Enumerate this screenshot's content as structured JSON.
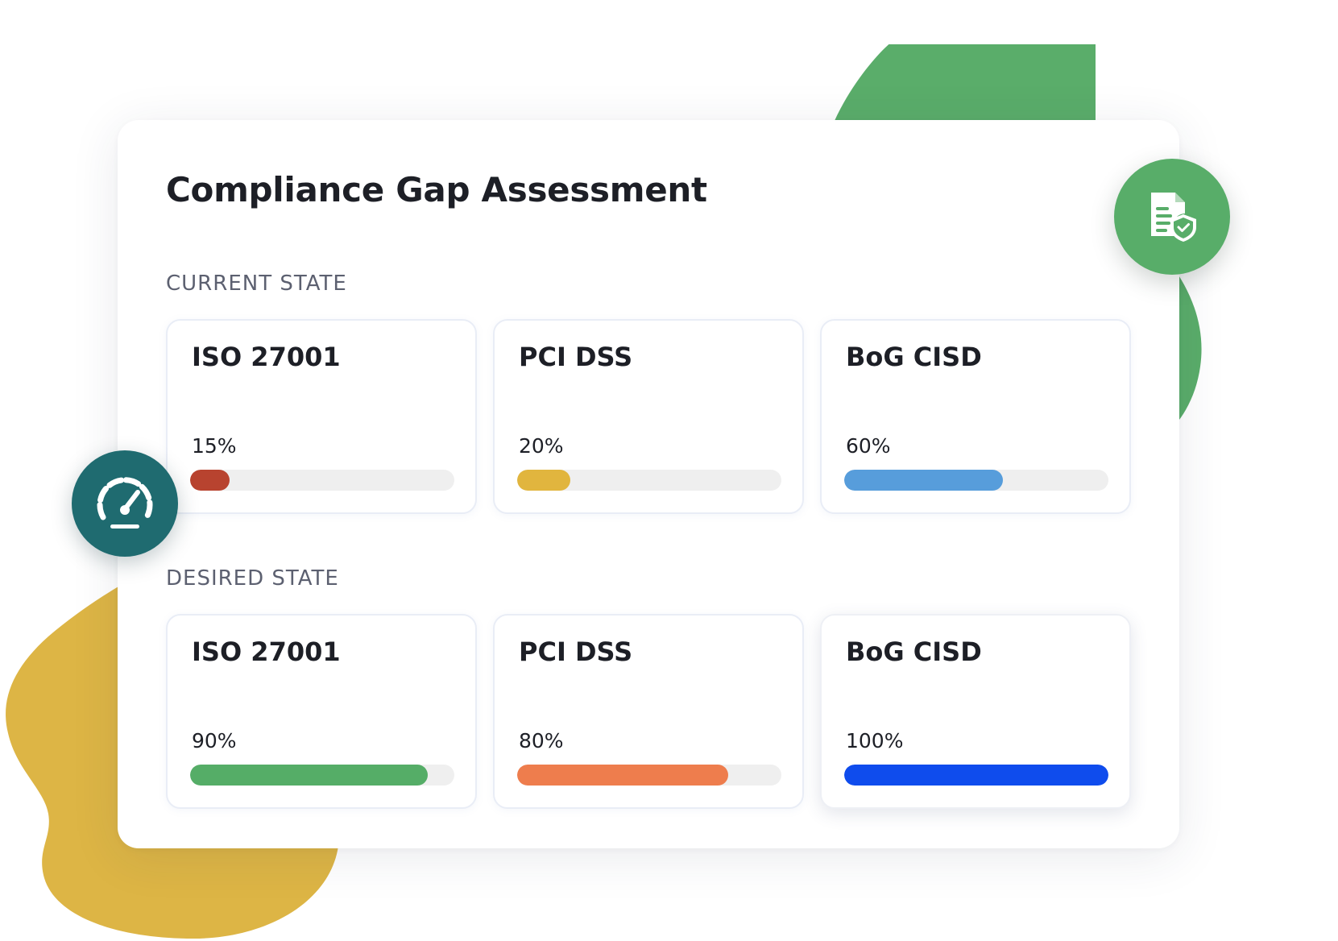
{
  "title": "Compliance Gap Assessment",
  "current_state": {
    "label": "CURRENT STATE",
    "items": [
      {
        "name": "ISO 27001",
        "percent_label": "15%",
        "progress": 0.15,
        "color": "#b8432f"
      },
      {
        "name": "PCI DSS",
        "percent_label": "20%",
        "progress": 0.2,
        "color": "#e1b53e"
      },
      {
        "name": "BoG CISD",
        "percent_label": "60%",
        "progress": 0.6,
        "color": "#579ddb"
      }
    ]
  },
  "desired_state": {
    "label": "DESIRED STATE",
    "items": [
      {
        "name": "ISO 27001",
        "percent_label": "90%",
        "progress": 0.9,
        "color": "#55ad67"
      },
      {
        "name": "PCI DSS",
        "percent_label": "80%",
        "progress": 0.8,
        "color": "#ee7d4d"
      },
      {
        "name": "BoG CISD",
        "percent_label": "100%",
        "progress": 1.0,
        "color": "#0f4ced"
      }
    ]
  },
  "icons": {
    "top_right_badge": "document-shield-icon",
    "left_badge": "speedometer-icon"
  },
  "colors": {
    "green_badge": "#58ad69",
    "teal_badge": "#1f6b70",
    "green_blob": "#5aad6a",
    "yellow_blob": "#ddb545"
  }
}
